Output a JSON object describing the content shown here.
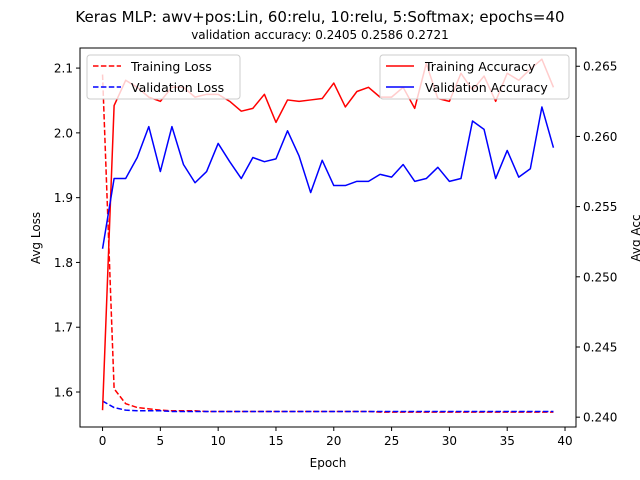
{
  "chart_data": {
    "type": "line",
    "title": "Keras MLP: awv+pos:Lin, 60:relu, 10:relu, 5:Softmax; epochs=40",
    "subtitle": "validation accuracy:  0.2405  0.2586  0.2721",
    "xlabel": "Epoch",
    "ylabel_left": "Avg Loss",
    "ylabel_right": "Avg Acc",
    "xlim": [
      -1.95,
      40.95
    ],
    "ylim_left": [
      1.546,
      2.131
    ],
    "ylim_right": [
      0.2393,
      0.2663
    ],
    "xticks": [
      0,
      5,
      10,
      15,
      20,
      25,
      30,
      35,
      40
    ],
    "xtick_labels": [
      "0",
      "5",
      "10",
      "15",
      "20",
      "25",
      "30",
      "35",
      "40"
    ],
    "yticks_left": [
      1.6,
      1.7,
      1.8,
      1.9,
      2.0,
      2.1
    ],
    "ytick_labels_left": [
      "1.6",
      "1.7",
      "1.8",
      "1.9",
      "2.0",
      "2.1"
    ],
    "yticks_right": [
      0.24,
      0.245,
      0.25,
      0.255,
      0.26,
      0.265
    ],
    "ytick_labels_right": [
      "0.240",
      "0.245",
      "0.250",
      "0.255",
      "0.260",
      "0.265"
    ],
    "grid": false,
    "legend_left": {
      "placement": "top-left",
      "entries": [
        "Training Loss",
        "Validation Loss"
      ]
    },
    "legend_right": {
      "placement": "top-right",
      "entries": [
        "Training Accuracy",
        "Validation Accuracy"
      ]
    },
    "x": [
      0,
      1,
      2,
      3,
      4,
      5,
      6,
      7,
      8,
      9,
      10,
      11,
      12,
      13,
      14,
      15,
      16,
      17,
      18,
      19,
      20,
      21,
      22,
      23,
      24,
      25,
      26,
      27,
      28,
      29,
      30,
      31,
      32,
      33,
      34,
      35,
      36,
      37,
      38,
      39
    ],
    "series": [
      {
        "name": "Training Loss",
        "axis": "left",
        "color": "#ff0000",
        "dash": "dashed",
        "values": [
          2.09,
          1.605,
          1.582,
          1.576,
          1.574,
          1.572,
          1.571,
          1.571,
          1.571,
          1.57,
          1.57,
          1.57,
          1.57,
          1.57,
          1.57,
          1.57,
          1.57,
          1.57,
          1.57,
          1.57,
          1.57,
          1.57,
          1.57,
          1.57,
          1.569,
          1.569,
          1.569,
          1.569,
          1.569,
          1.569,
          1.569,
          1.569,
          1.569,
          1.569,
          1.569,
          1.569,
          1.569,
          1.569,
          1.569,
          1.569
        ]
      },
      {
        "name": "Validation Loss",
        "axis": "left",
        "color": "#0000ff",
        "dash": "dashed",
        "values": [
          1.586,
          1.576,
          1.572,
          1.571,
          1.571,
          1.571,
          1.57,
          1.57,
          1.57,
          1.57,
          1.57,
          1.57,
          1.57,
          1.57,
          1.57,
          1.57,
          1.57,
          1.57,
          1.57,
          1.57,
          1.57,
          1.57,
          1.57,
          1.57,
          1.57,
          1.57,
          1.57,
          1.57,
          1.57,
          1.57,
          1.57,
          1.57,
          1.57,
          1.57,
          1.57,
          1.57,
          1.57,
          1.57,
          1.57,
          1.57
        ]
      },
      {
        "name": "Training Accuracy",
        "axis": "right",
        "color": "#ff0000",
        "dash": "solid",
        "values": [
          0.2405,
          0.2622,
          0.264,
          0.2635,
          0.2628,
          0.2625,
          0.2635,
          0.2635,
          0.2628,
          0.263,
          0.263,
          0.2625,
          0.2618,
          0.262,
          0.263,
          0.261,
          0.2626,
          0.2625,
          0.2626,
          0.2627,
          0.2638,
          0.2621,
          0.2632,
          0.2635,
          0.2628,
          0.2628,
          0.2635,
          0.262,
          0.2652,
          0.2627,
          0.2625,
          0.2645,
          0.2633,
          0.2643,
          0.2625,
          0.2645,
          0.264,
          0.2648,
          0.2655,
          0.2635
        ]
      },
      {
        "name": "Validation Accuracy",
        "axis": "right",
        "color": "#0000ff",
        "dash": "solid",
        "values": [
          0.252,
          0.257,
          0.257,
          0.2585,
          0.2607,
          0.2575,
          0.2607,
          0.258,
          0.2567,
          0.2575,
          0.2595,
          0.2582,
          0.257,
          0.2585,
          0.2582,
          0.2584,
          0.2604,
          0.2586,
          0.256,
          0.2583,
          0.2565,
          0.2565,
          0.2568,
          0.2568,
          0.2573,
          0.2571,
          0.258,
          0.2568,
          0.257,
          0.2578,
          0.2568,
          0.257,
          0.2611,
          0.2605,
          0.257,
          0.259,
          0.2571,
          0.2577,
          0.2621,
          0.2592
        ]
      }
    ]
  }
}
